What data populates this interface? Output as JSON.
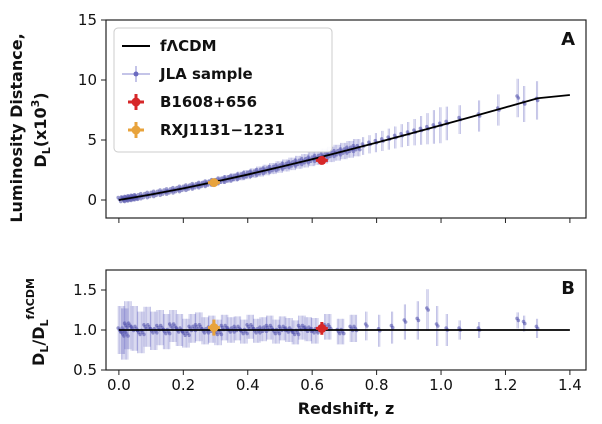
{
  "chart_data": [
    {
      "panel": "A",
      "type": "scatter",
      "xlabel": "Redshift, z",
      "ylabel_line1": "Luminosity Distance,",
      "ylabel_line2": "D",
      "ylabel_sub": "L",
      "ylabel_rest": "(x10",
      "ylabel_sup": "3",
      "ylabel_close": ")",
      "xlim": [
        -0.04,
        1.45
      ],
      "ylim": [
        -1.5,
        15
      ],
      "xticks": [
        0.0,
        0.2,
        0.4,
        0.6,
        0.8,
        1.0,
        1.2,
        1.4
      ],
      "xtick_labels": [
        "0.0",
        "0.2",
        "0.4",
        "0.6",
        "0.8",
        "1.0",
        "1.2",
        "1.4"
      ],
      "yticks": [
        0,
        5,
        10,
        15
      ],
      "ytick_labels": [
        "0",
        "5",
        "10",
        "15"
      ],
      "series": [
        {
          "name": "fΛCDM",
          "kind": "line",
          "color": "#000000",
          "x": [
            0.0,
            0.1,
            0.2,
            0.3,
            0.4,
            0.5,
            0.6,
            0.7,
            0.8,
            0.9,
            1.0,
            1.1,
            1.2,
            1.3,
            1.4
          ],
          "y": [
            0.0,
            0.46,
            0.97,
            1.53,
            2.12,
            2.75,
            3.4,
            4.08,
            4.78,
            5.5,
            6.23,
            6.97,
            7.72,
            8.48,
            8.75
          ]
        },
        {
          "name": "JLA sample",
          "kind": "scatter_errorbar",
          "color": "#4a4aa8",
          "x": [
            0.01,
            0.02,
            0.03,
            0.04,
            0.05,
            0.06,
            0.08,
            0.1,
            0.12,
            0.14,
            0.16,
            0.18,
            0.2,
            0.22,
            0.24,
            0.26,
            0.28,
            0.3,
            0.32,
            0.34,
            0.36,
            0.38,
            0.4,
            0.42,
            0.44,
            0.46,
            0.48,
            0.5,
            0.52,
            0.54,
            0.56,
            0.58,
            0.6,
            0.62,
            0.64,
            0.66,
            0.68,
            0.7,
            0.72,
            0.74,
            0.76,
            0.78,
            0.8,
            0.82,
            0.84,
            0.86,
            0.88,
            0.9,
            0.92,
            0.94,
            0.96,
            0.98,
            1.0,
            1.02,
            1.06,
            1.12,
            1.18,
            1.24,
            1.26,
            1.3
          ],
          "y": [
            0.04,
            0.09,
            0.13,
            0.18,
            0.22,
            0.27,
            0.36,
            0.46,
            0.56,
            0.66,
            0.76,
            0.86,
            0.97,
            1.08,
            1.19,
            1.3,
            1.41,
            1.53,
            1.65,
            1.76,
            1.88,
            2.0,
            2.12,
            2.24,
            2.37,
            2.5,
            2.62,
            2.75,
            2.88,
            3.01,
            3.14,
            3.27,
            3.4,
            3.53,
            3.67,
            3.8,
            3.94,
            4.08,
            4.22,
            4.36,
            4.5,
            4.64,
            4.78,
            4.92,
            5.07,
            5.21,
            5.36,
            5.5,
            5.65,
            5.8,
            5.94,
            6.09,
            6.23,
            6.38,
            6.7,
            7.0,
            7.5,
            8.5,
            8.0,
            8.3
          ],
          "yerr": [
            0.05,
            0.05,
            0.06,
            0.06,
            0.07,
            0.08,
            0.09,
            0.1,
            0.12,
            0.14,
            0.15,
            0.17,
            0.18,
            0.2,
            0.22,
            0.24,
            0.26,
            0.28,
            0.3,
            0.32,
            0.34,
            0.36,
            0.38,
            0.4,
            0.42,
            0.44,
            0.46,
            0.48,
            0.5,
            0.52,
            0.54,
            0.56,
            0.58,
            0.6,
            0.62,
            0.64,
            0.66,
            0.68,
            0.7,
            0.72,
            0.74,
            0.76,
            0.8,
            0.84,
            0.88,
            0.92,
            0.96,
            1.0,
            1.1,
            1.2,
            1.3,
            1.4,
            1.5,
            1.4,
            1.2,
            1.3,
            1.3,
            1.6,
            1.5,
            1.6
          ]
        },
        {
          "name": "B1608+656",
          "kind": "point",
          "color": "#d62728",
          "x": [
            0.63
          ],
          "y": [
            3.3
          ],
          "yerr": [
            0.35
          ]
        },
        {
          "name": "RXJ1131−1231",
          "kind": "point",
          "color": "#e8a33c",
          "x": [
            0.295
          ],
          "y": [
            1.45
          ],
          "yerr": [
            0.15
          ]
        }
      ],
      "legend": {
        "placement": "top-left"
      }
    },
    {
      "panel": "B",
      "type": "scatter",
      "xlabel": "Redshift, z",
      "ylabel_main": "D",
      "ylabel_sub1": "L",
      "ylabel_slash": "/D",
      "ylabel_sub2": "L",
      "ylabel_sup": "fΛCDM",
      "xlim": [
        -0.04,
        1.45
      ],
      "ylim": [
        0.5,
        1.75
      ],
      "xticks": [
        0.0,
        0.2,
        0.4,
        0.6,
        0.8,
        1.0,
        1.2,
        1.4
      ],
      "xtick_labels": [
        "0.0",
        "0.2",
        "0.4",
        "0.6",
        "0.8",
        "1.0",
        "1.2",
        "1.4"
      ],
      "yticks": [
        0.5,
        1.0,
        1.5
      ],
      "ytick_labels": [
        "0.5",
        "1.0",
        "1.5"
      ],
      "series": [
        {
          "name": "fΛCDM",
          "kind": "hline",
          "color": "#000000",
          "y": 1.0
        },
        {
          "name": "JLA sample",
          "kind": "scatter_errorbar",
          "color": "#4a4aa8",
          "x": [
            0.01,
            0.02,
            0.03,
            0.05,
            0.07,
            0.09,
            0.11,
            0.13,
            0.15,
            0.17,
            0.19,
            0.21,
            0.23,
            0.25,
            0.27,
            0.29,
            0.31,
            0.33,
            0.35,
            0.37,
            0.39,
            0.41,
            0.43,
            0.45,
            0.47,
            0.49,
            0.51,
            0.53,
            0.55,
            0.57,
            0.59,
            0.61,
            0.65,
            0.69,
            0.73,
            0.77,
            0.81,
            0.85,
            0.89,
            0.93,
            0.96,
            0.99,
            1.02,
            1.06,
            1.12,
            1.24,
            1.26,
            1.3
          ],
          "y": [
            1.0,
            0.95,
            1.06,
            1.02,
            0.97,
            1.04,
            0.99,
            1.03,
            0.98,
            1.05,
            1.0,
            0.96,
            1.02,
            1.04,
            0.99,
            1.01,
            0.97,
            1.03,
            1.0,
            1.02,
            0.98,
            1.04,
            0.99,
            1.01,
            1.03,
            0.98,
            1.02,
            1.0,
            0.97,
            1.03,
            1.01,
            0.99,
            1.04,
            0.98,
            1.02,
            1.05,
            0.99,
            1.03,
            1.1,
            1.12,
            1.25,
            1.05,
            1.0,
            1.0,
            1.0,
            1.12,
            1.08,
            1.02
          ],
          "yerr": [
            0.3,
            0.32,
            0.3,
            0.28,
            0.26,
            0.25,
            0.24,
            0.22,
            0.22,
            0.2,
            0.2,
            0.18,
            0.18,
            0.18,
            0.17,
            0.17,
            0.16,
            0.16,
            0.16,
            0.15,
            0.15,
            0.15,
            0.15,
            0.15,
            0.15,
            0.15,
            0.15,
            0.15,
            0.15,
            0.15,
            0.15,
            0.16,
            0.16,
            0.16,
            0.17,
            0.18,
            0.2,
            0.2,
            0.22,
            0.24,
            0.26,
            0.25,
            0.2,
            0.12,
            0.1,
            0.1,
            0.1,
            0.12
          ]
        },
        {
          "name": "B1608+656",
          "kind": "point",
          "color": "#d62728",
          "x": [
            0.63
          ],
          "y": [
            1.02
          ],
          "yerr": [
            0.08
          ]
        },
        {
          "name": "RXJ1131−1231",
          "kind": "point",
          "color": "#e8a33c",
          "x": [
            0.295
          ],
          "y": [
            1.03
          ],
          "yerr": [
            0.1
          ]
        }
      ]
    }
  ]
}
